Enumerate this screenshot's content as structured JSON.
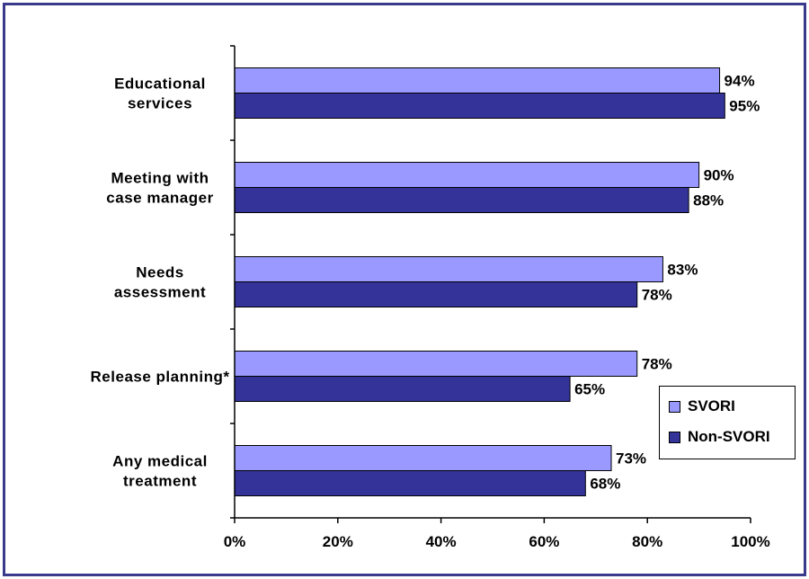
{
  "chart_data": {
    "type": "bar",
    "orientation": "horizontal",
    "categories": [
      [
        "Educational",
        "services"
      ],
      [
        "Meeting with",
        "case manager"
      ],
      [
        "Needs",
        "assessment"
      ],
      [
        "Release planning*"
      ],
      [
        "Any medical",
        "treatment"
      ]
    ],
    "series": [
      {
        "name": "SVORI",
        "values": [
          94,
          90,
          83,
          78,
          73
        ],
        "labels": [
          "94%",
          "90%",
          "83%",
          "78%",
          "73%"
        ]
      },
      {
        "name": "Non-SVORI",
        "values": [
          95,
          88,
          78,
          65,
          68
        ],
        "labels": [
          "95%",
          "88%",
          "78%",
          "65%",
          "68%"
        ]
      }
    ],
    "xlim": [
      0,
      100
    ],
    "x_ticks": [
      "0%",
      "20%",
      "40%",
      "60%",
      "80%",
      "100%"
    ],
    "grid": false,
    "legend": {
      "position": "right",
      "entries": [
        "SVORI",
        "Non-SVORI"
      ]
    },
    "colors": {
      "SVORI": "#9999ff",
      "Non-SVORI": "#333399",
      "border": "#3a3a8c"
    }
  }
}
